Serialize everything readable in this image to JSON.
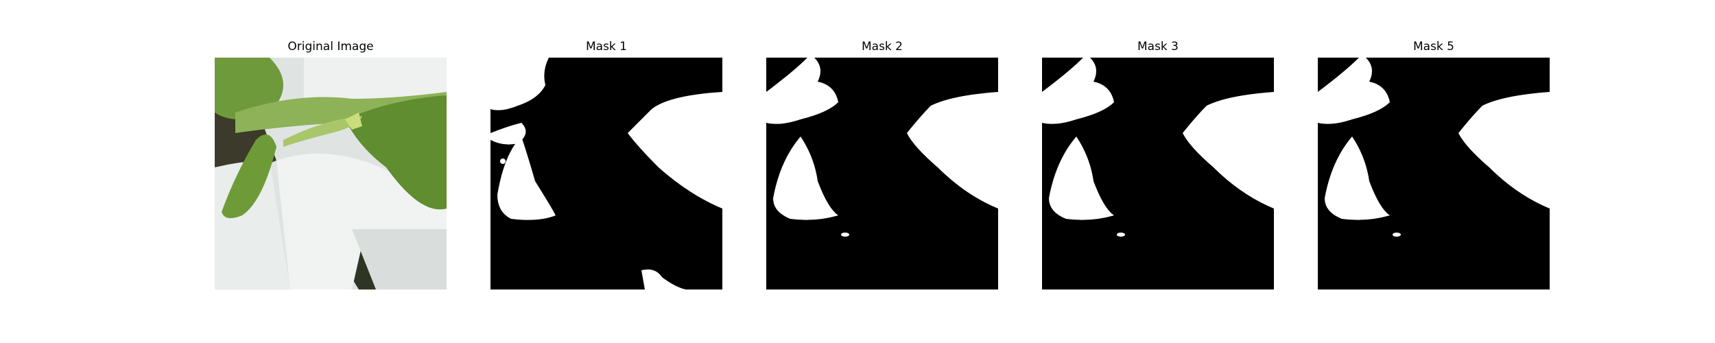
{
  "figure": {
    "panels": [
      {
        "title": "Original Image",
        "kind": "photo"
      },
      {
        "title": "Mask 1",
        "kind": "mask"
      },
      {
        "title": "Mask 2",
        "kind": "mask"
      },
      {
        "title": "Mask 3",
        "kind": "mask"
      },
      {
        "title": "Mask 5",
        "kind": "mask"
      }
    ]
  },
  "colors": {
    "mask_background": "#000000",
    "mask_foreground": "#ffffff",
    "leaf_green": "#7da849",
    "leaf_dark": "#5e8a2e",
    "pot_white": "#e8ecea",
    "shadow": "#4a4f3a"
  }
}
